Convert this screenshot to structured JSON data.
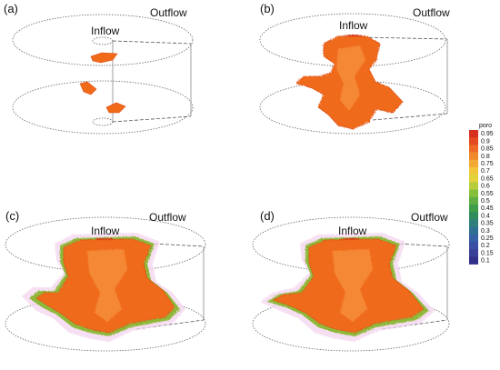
{
  "panels": [
    {
      "label": "(a)",
      "inflow": "Inflow",
      "outflow": "Outflow"
    },
    {
      "label": "(b)",
      "inflow": "Inflow",
      "outflow": "Outflow"
    },
    {
      "label": "(c)",
      "inflow": "Inflow",
      "outflow": "Outflow"
    },
    {
      "label": "(d)",
      "inflow": "Inflow",
      "outflow": "Outflow"
    }
  ],
  "colorbar": {
    "title": "poro",
    "ticks": [
      "0.95",
      "0.9",
      "0.85",
      "0.8",
      "0.75",
      "0.7",
      "0.65",
      "0.6",
      "0.55",
      "0.5",
      "0.45",
      "0.4",
      "0.35",
      "0.3",
      "0.25",
      "0.2",
      "0.15",
      "0.1"
    ],
    "colors": [
      "#d7301f",
      "#e34a1f",
      "#ee6a24",
      "#f08a2b",
      "#f2a933",
      "#f0c53a",
      "#e3d33a",
      "#b6cc3a",
      "#86bf3c",
      "#5fae42",
      "#3f9e4a",
      "#2e8d5a",
      "#2f7f7a",
      "#2f6f92",
      "#3560a3",
      "#3a4fa3",
      "#3a3f98",
      "#322f88"
    ]
  },
  "colors": {
    "plume": "#f06a1a",
    "plume_dark": "#d94d12",
    "plume_light": "#f7a04a",
    "fringe": "#8fb83a",
    "halo": "#f3d4ee"
  }
}
